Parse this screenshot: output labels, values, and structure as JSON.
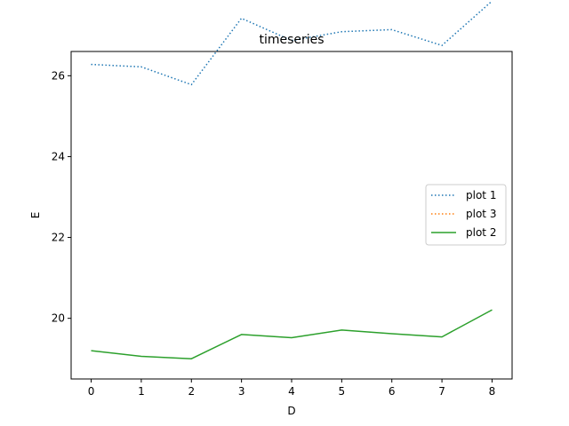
{
  "chart_data": {
    "type": "line",
    "title": "timeseries",
    "xlabel": "D",
    "ylabel": "E",
    "xlim": [
      -0.4,
      8.4
    ],
    "ylim": [
      18.5,
      26.6
    ],
    "xticks": [
      0,
      1,
      2,
      3,
      4,
      5,
      6,
      7,
      8
    ],
    "yticks": [
      20,
      22,
      24,
      26,
      28
    ],
    "grid": false,
    "legend_position": "center-right",
    "series": [
      {
        "name": "plot 1",
        "color": "#1f77b4",
        "style": "dotted",
        "x": [
          0,
          1,
          2,
          3,
          4,
          5,
          6,
          7,
          8
        ],
        "y": [
          26.28,
          26.22,
          25.78,
          27.42,
          26.87,
          27.09,
          27.14,
          26.75,
          27.85
        ]
      },
      {
        "name": "plot 3",
        "color": "#ff7f0e",
        "style": "dotted",
        "x": [],
        "y": []
      },
      {
        "name": "plot 2",
        "color": "#2ca02c",
        "style": "solid",
        "x": [
          0,
          1,
          2,
          3,
          4,
          5,
          6,
          7,
          8
        ],
        "y": [
          19.2,
          19.06,
          19.0,
          19.6,
          19.52,
          19.71,
          19.62,
          19.54,
          20.21
        ]
      }
    ]
  }
}
